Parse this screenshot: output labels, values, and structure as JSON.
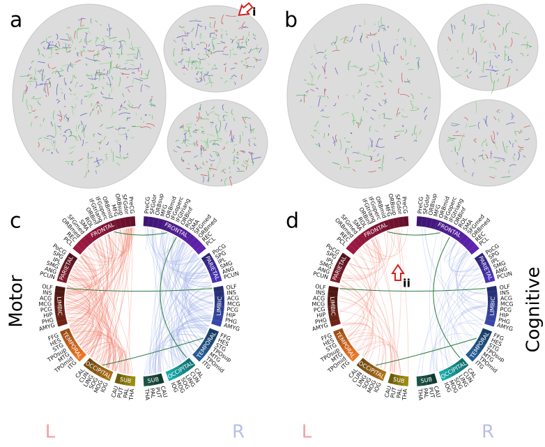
{
  "panel_labels": [
    "a",
    "b",
    "c",
    "d"
  ],
  "markers": [
    "i",
    "ii"
  ],
  "side_labels": {
    "left": "Motor",
    "right": "Cognitive"
  },
  "hemisphere_labels": {
    "left": "L",
    "right": "R"
  },
  "lobes": [
    {
      "name": "FRONTAL",
      "left_color": "#7d1434",
      "right_color": "#4b1c8c",
      "regions": [
        "PreCG",
        "SFGdor",
        "ORBsup",
        "MFG",
        "ORBmid",
        "IFGoperc",
        "IFGtriang",
        "ORBinf",
        "ROL",
        "SMA",
        "SFGmed",
        "ORBmed",
        "REC",
        "PCL"
      ]
    },
    {
      "name": "PARIETAL",
      "left_color": "#6a1822",
      "right_color": "#3b2a98",
      "regions": [
        "PoCG",
        "SPG",
        "IPL",
        "SMG",
        "ANG",
        "PCUN"
      ]
    },
    {
      "name": "LIMBIC",
      "left_color": "#5c1c12",
      "right_color": "#2c3a88",
      "regions": [
        "OLF",
        "INS",
        "ACG",
        "MCG",
        "PCG",
        "HIP",
        "PHG",
        "AMYG"
      ]
    },
    {
      "name": "TEMPORAL",
      "left_color": "#c2601c",
      "right_color": "#1e4c7c",
      "regions": [
        "FFG",
        "HES",
        "STG",
        "TPOsup",
        "MTG",
        "TPOmid",
        "ITG"
      ]
    },
    {
      "name": "OCCIPITAL",
      "left_color": "#8c5a12",
      "right_color": "#138c8c",
      "regions": [
        "CAL",
        "CUN",
        "LING",
        "SOG",
        "MOG",
        "IOG"
      ]
    },
    {
      "name": "SUB",
      "left_color": "#86760e",
      "right_color": "#16483a",
      "regions": [
        "CAU",
        "PUT",
        "PAL",
        "THA"
      ]
    }
  ]
}
